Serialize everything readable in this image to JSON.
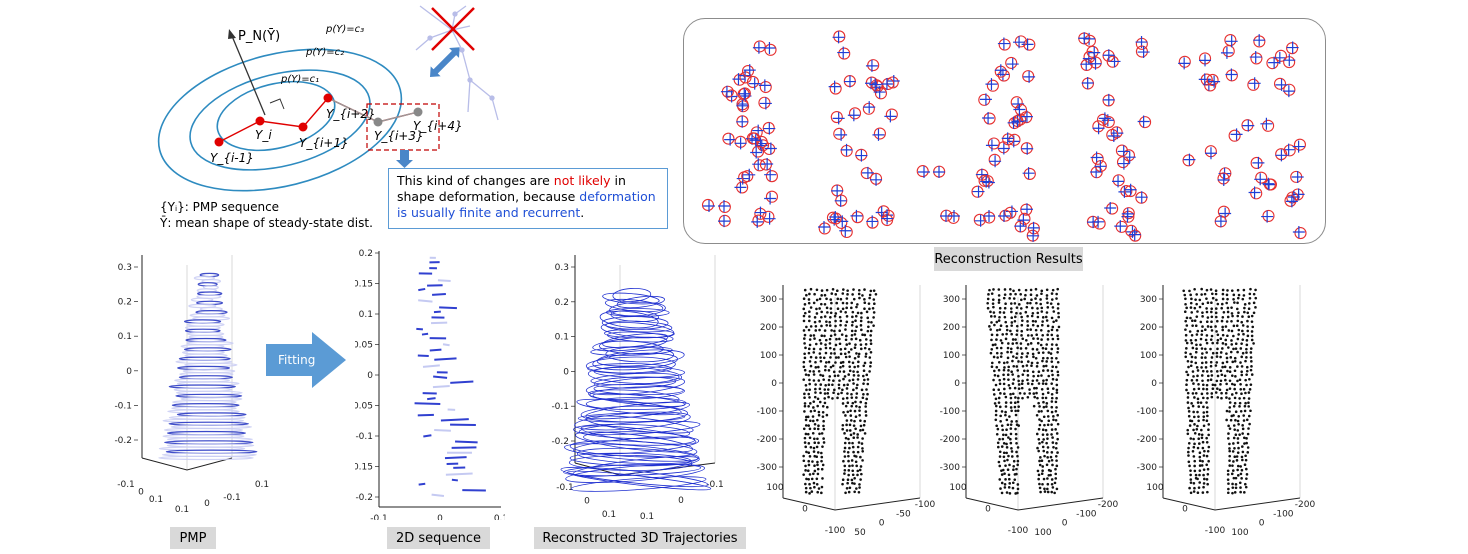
{
  "pmp_diagram": {
    "projection_label": "P_N(Ȳ)",
    "contour_labels": [
      "p(Y)=c₁",
      "p(Y)=c₂",
      "p(Y)=c₃"
    ],
    "point_labels": [
      "Y_{i-1}",
      "Y_i",
      "Y_{i+1}",
      "Y_{i+2}",
      "Y_{i+3}",
      "Y_{i+4}"
    ],
    "legend_lines": [
      "{Yᵢ}: PMP sequence",
      "Ȳ: mean shape of steady-state  dist."
    ]
  },
  "note": {
    "part1": "This kind of changes are ",
    "highlight_red": "not likely",
    "part2": " in shape deformation, because ",
    "highlight_blue": "deformation is usually finite and recurrent",
    "part3": "."
  },
  "captions": {
    "pmp": "PMP",
    "fitting": "Fitting",
    "seq2d": "2D sequence",
    "traj3d": "Reconstructed  3D Trajectories",
    "results": "Reconstruction  Results"
  },
  "plots": {
    "pmp_plot": {
      "z_ticks": [
        "0.3",
        "0.2",
        "0.1",
        "0",
        "-0.1",
        "-0.2"
      ],
      "x_ticks": [
        "-0.1",
        "0",
        "0.1"
      ],
      "y_ticks": [
        "0.1",
        "0",
        "-0.1"
      ]
    },
    "seq2d_plot": {
      "y_ticks": [
        "0.2",
        "0.15",
        "0.1",
        "0.05",
        "0",
        "-0.05",
        "-0.1",
        "-0.15",
        "-0.2"
      ],
      "x_ticks": [
        "-0.1",
        "0",
        "0.1"
      ]
    },
    "traj3d_plot": {
      "z_ticks": [
        "0.3",
        "0.2",
        "0.1",
        "0",
        "-0.1",
        "-0.2"
      ],
      "x_ticks": [
        "-0.1",
        "0",
        "0.1"
      ],
      "y_ticks": [
        "0.1",
        "0",
        "-0.1"
      ]
    },
    "body1": {
      "z_ticks": [
        "300",
        "200",
        "100",
        "0",
        "-100",
        "-200",
        "-300"
      ],
      "x_ticks": [
        "100",
        "0",
        "-100"
      ],
      "y_ticks": [
        "50",
        "0",
        "-50",
        "-100"
      ]
    },
    "body2": {
      "z_ticks": [
        "300",
        "200",
        "100",
        "0",
        "-100",
        "-200",
        "-300"
      ],
      "x_ticks": [
        "100",
        "0",
        "-100"
      ],
      "y_ticks": [
        "100",
        "0",
        "-100",
        "-200"
      ]
    },
    "body3": {
      "z_ticks": [
        "300",
        "200",
        "100",
        "0",
        "-100",
        "-200",
        "-300"
      ],
      "x_ticks": [
        "100",
        "0",
        "-100"
      ],
      "y_ticks": [
        "100",
        "0",
        "-100",
        "-200"
      ]
    }
  }
}
